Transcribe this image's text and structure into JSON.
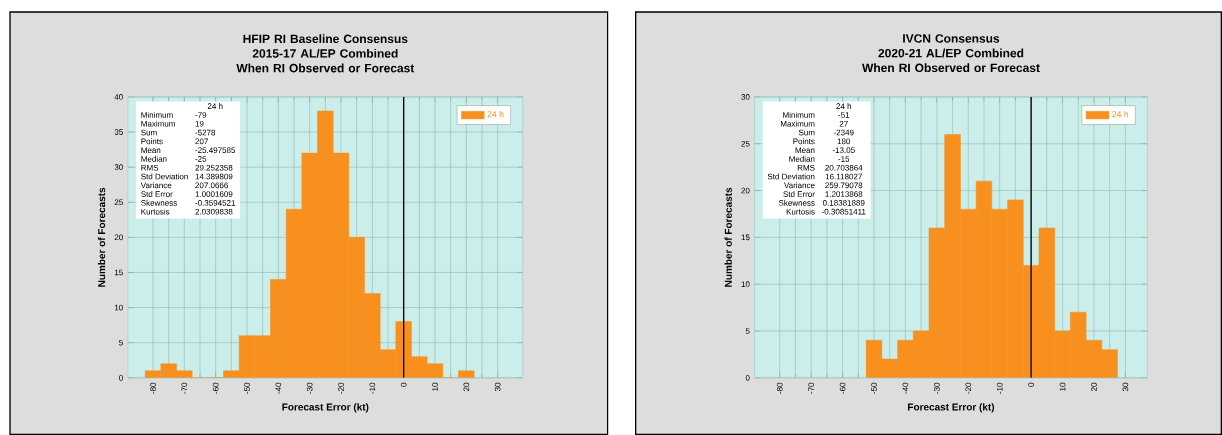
{
  "chart_data": [
    {
      "type": "histogram",
      "title": "HFIP RI Baseline Consensus",
      "subtitle": "2015-17 AL/EP Combined When RI Observed or Forecast",
      "xlabel": "Forecast Error (kt)",
      "ylabel": "Number of Forecasts",
      "bins": [
        -82.5,
        -77.5,
        -72.5,
        -67.5,
        -62.5,
        -57.5,
        -52.5,
        -47.5,
        -42.5,
        -37.5,
        -32.5,
        -27.5,
        -22.5,
        -17.5,
        -12.5,
        -7.5,
        -2.5,
        2.5,
        7.5,
        12.5,
        17.5,
        22.5
      ],
      "series": [
        {
          "name": "24 h",
          "color": "#f7901e",
          "values": [
            1,
            2,
            1,
            0,
            0,
            1,
            6,
            6,
            14,
            24,
            32,
            38,
            32,
            20,
            12,
            4,
            8,
            3,
            2,
            0,
            1
          ]
        }
      ],
      "xlim": [
        -88,
        38
      ],
      "ylim": [
        0,
        40
      ],
      "xticks": [
        -80,
        -70,
        -60,
        -50,
        -40,
        -30,
        -20,
        -10,
        0,
        10,
        20,
        30
      ],
      "yticks": [
        0,
        5,
        10,
        15,
        20,
        25,
        30,
        35,
        40
      ],
      "grid": true,
      "legend": "top right",
      "ref_lines": [
        {
          "axis": "x",
          "value": 0,
          "color": "#000000"
        }
      ],
      "annotations": [
        "24 h",
        "Minimum",
        "-79",
        "Maximum",
        "19",
        "Sum",
        "-5278",
        "Points",
        "207",
        "Mean",
        "-25.497585",
        "Median",
        "-25",
        "RMS",
        "29.252358",
        "Std Deviation",
        "14.389809",
        "Variance",
        "207.0666",
        "Std Error",
        "1.0001609",
        "Skewness",
        "-0.3594521",
        "Kurtosis",
        "2.0309838"
      ]
    },
    {
      "type": "histogram",
      "title": "IVCN Consensus",
      "subtitle": "2020-21 AL/EP Combined When RI Observed or Forecast",
      "xlabel": "Forecast Error (kt)",
      "ylabel": "Number of Forecasts",
      "bins": [
        -52.5,
        -47.5,
        -42.5,
        -37.5,
        -32.5,
        -27.5,
        -22.5,
        -17.5,
        -12.5,
        -7.5,
        -2.5,
        2.5,
        7.5,
        12.5,
        17.5,
        22.5,
        27.5
      ],
      "series": [
        {
          "name": "24 h",
          "color": "#f7901e",
          "values": [
            4,
            2,
            4,
            5,
            16,
            26,
            18,
            21,
            18,
            19,
            12,
            16,
            5,
            7,
            4,
            3
          ]
        }
      ],
      "xlim": [
        -88,
        37
      ],
      "ylim": [
        0,
        30
      ],
      "xticks": [
        -80,
        -70,
        -60,
        -50,
        -40,
        -30,
        -20,
        -10,
        0,
        10,
        20,
        30
      ],
      "yticks": [
        0,
        5,
        10,
        15,
        20,
        25,
        30
      ],
      "grid": true,
      "legend": "top right",
      "ref_lines": [
        {
          "axis": "x",
          "value": 0,
          "color": "#000000"
        }
      ],
      "annotations": [
        "24 h",
        "Minimum",
        "-51",
        "Maximum",
        "27",
        "Sum",
        "-2349",
        "Points",
        "180",
        "Mean",
        "-13.05",
        "Median",
        "-15",
        "RMS",
        "20.703864",
        "Std Deviation",
        "16.118027",
        "Variance",
        "259.79078",
        "Std Error",
        "1.2013868",
        "Skewness",
        "0.18381889",
        "Kurtosis",
        "-0.30851411"
      ]
    }
  ]
}
